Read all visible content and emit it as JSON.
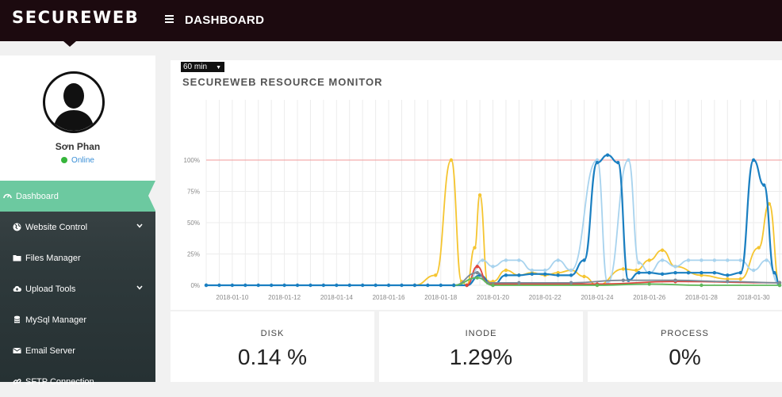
{
  "header": {
    "brand": "SECUREWEB",
    "title": "DASHBOARD"
  },
  "profile": {
    "name": "Sơn Phan",
    "status": "Online"
  },
  "sidebar": {
    "items": [
      {
        "label": "Dashboard",
        "icon": "gauge-icon",
        "active": true
      },
      {
        "label": "Website Control",
        "icon": "globe-icon",
        "chevron": true
      },
      {
        "label": "Files Manager",
        "icon": "folder-icon"
      },
      {
        "label": "Upload Tools",
        "icon": "cloud-upload-icon",
        "chevron": true
      },
      {
        "label": "MySql Manager",
        "icon": "database-icon"
      },
      {
        "label": "Email Server",
        "icon": "envelope-icon"
      },
      {
        "label": "SFTP Connection",
        "icon": "link-icon"
      }
    ]
  },
  "monitor": {
    "range": "60 min",
    "title": "SECUREWEB RESOURCE MONITOR"
  },
  "chart_data": {
    "type": "line",
    "title": "SECUREWEB RESOURCE MONITOR",
    "xlabel": "",
    "ylabel": "",
    "ylim": [
      0,
      100
    ],
    "yticks": [
      "0%",
      "25%",
      "50%",
      "75%",
      "100%"
    ],
    "x_ticks": [
      "2018-01-10",
      "2018-01-12",
      "2018-01-14",
      "2018-01-16",
      "2018-01-18",
      "2018-01-20",
      "2018-01-22",
      "2018-01-24",
      "2018-01-26",
      "2018-01-28",
      "2018-01-30"
    ],
    "x_range": [
      "2018-01-09",
      "2018-01-31"
    ],
    "threshold": 100,
    "grid": true,
    "colors": {
      "threshold": "#f29a9a",
      "grid": "#ececec"
    },
    "series": [
      {
        "color": "#f5c531",
        "points": [
          [
            "2018-01-17.0",
            0
          ],
          [
            "2018-01-17.8",
            8
          ],
          [
            "2018-01-18.4",
            100
          ],
          [
            "2018-01-18.8",
            3
          ],
          [
            "2018-01-19.0",
            0
          ],
          [
            "2018-01-19.3",
            30
          ],
          [
            "2018-01-19.5",
            72
          ],
          [
            "2018-01-19.8",
            3
          ],
          [
            "2018-01-20.0",
            3
          ],
          [
            "2018-01-20.5",
            12
          ],
          [
            "2018-01-21.0",
            8
          ],
          [
            "2018-01-21.5",
            10
          ],
          [
            "2018-01-22.0",
            8
          ],
          [
            "2018-01-22.5",
            10
          ],
          [
            "2018-01-23.0",
            12
          ],
          [
            "2018-01-23.5",
            7
          ],
          [
            "2018-01-24.0",
            0
          ],
          [
            "2018-01-25.0",
            13
          ],
          [
            "2018-01-25.5",
            12
          ],
          [
            "2018-01-26.0",
            20
          ],
          [
            "2018-01-26.5",
            28
          ],
          [
            "2018-01-27.0",
            15
          ],
          [
            "2018-01-28.0",
            8
          ],
          [
            "2018-01-29.0",
            5
          ],
          [
            "2018-01-29.5",
            5
          ],
          [
            "2018-01-30.2",
            30
          ],
          [
            "2018-01-30.6",
            65
          ],
          [
            "2018-01-31.0",
            0
          ]
        ]
      },
      {
        "color": "#a8d3ee",
        "points": [
          [
            "2018-01-17.0",
            0
          ],
          [
            "2018-01-19.0",
            0
          ],
          [
            "2018-01-19.6",
            20
          ],
          [
            "2018-01-20.0",
            15
          ],
          [
            "2018-01-20.5",
            20
          ],
          [
            "2018-01-21.0",
            20
          ],
          [
            "2018-01-21.5",
            12
          ],
          [
            "2018-01-22.0",
            12
          ],
          [
            "2018-01-22.5",
            20
          ],
          [
            "2018-01-23.0",
            12
          ],
          [
            "2018-01-24.0",
            100
          ],
          [
            "2018-01-24.4",
            2
          ],
          [
            "2018-01-25.2",
            100
          ],
          [
            "2018-01-25.6",
            18
          ],
          [
            "2018-01-26.0",
            10
          ],
          [
            "2018-01-26.5",
            20
          ],
          [
            "2018-01-27.0",
            15
          ],
          [
            "2018-01-27.5",
            20
          ],
          [
            "2018-01-28.0",
            20
          ],
          [
            "2018-01-28.5",
            20
          ],
          [
            "2018-01-29.0",
            20
          ],
          [
            "2018-01-29.5",
            20
          ],
          [
            "2018-01-30.0",
            12
          ],
          [
            "2018-01-30.5",
            20
          ],
          [
            "2018-01-31.0",
            0
          ]
        ]
      },
      {
        "color": "#1a7fc1",
        "points": [
          [
            "2018-01-09.0",
            0
          ],
          [
            "2018-01-19.0",
            0
          ],
          [
            "2018-01-19.5",
            8
          ],
          [
            "2018-01-20.0",
            0
          ],
          [
            "2018-01-20.5",
            8
          ],
          [
            "2018-01-21.0",
            8
          ],
          [
            "2018-01-21.5",
            9
          ],
          [
            "2018-01-22.0",
            9
          ],
          [
            "2018-01-22.5",
            8
          ],
          [
            "2018-01-23.0",
            8
          ],
          [
            "2018-01-23.5",
            20
          ],
          [
            "2018-01-24.0",
            98
          ],
          [
            "2018-01-24.4",
            104
          ],
          [
            "2018-01-24.8",
            98
          ],
          [
            "2018-01-25.2",
            4
          ],
          [
            "2018-01-25.6",
            10
          ],
          [
            "2018-01-26.0",
            10
          ],
          [
            "2018-01-26.5",
            9
          ],
          [
            "2018-01-27.0",
            10
          ],
          [
            "2018-01-27.5",
            10
          ],
          [
            "2018-01-28.0",
            10
          ],
          [
            "2018-01-28.5",
            10
          ],
          [
            "2018-01-29.0",
            8
          ],
          [
            "2018-01-29.5",
            10
          ],
          [
            "2018-01-30.0",
            100
          ],
          [
            "2018-01-30.4",
            80
          ],
          [
            "2018-01-30.8",
            10
          ],
          [
            "2018-01-31.0",
            0
          ]
        ]
      },
      {
        "color": "#e0453d",
        "points": [
          [
            "2018-01-19.0",
            0
          ],
          [
            "2018-01-19.4",
            15
          ],
          [
            "2018-01-19.8",
            2
          ],
          [
            "2018-01-20.0",
            1
          ],
          [
            "2018-01-23.0",
            1
          ],
          [
            "2018-01-24.0",
            1
          ],
          [
            "2018-01-27.0",
            3
          ],
          [
            "2018-01-31.0",
            2
          ]
        ]
      },
      {
        "color": "#7b8a98",
        "points": [
          [
            "2018-01-18.5",
            0
          ],
          [
            "2018-01-19.4",
            10
          ],
          [
            "2018-01-19.8",
            2
          ],
          [
            "2018-01-21.0",
            2
          ],
          [
            "2018-01-23.0",
            2
          ],
          [
            "2018-01-25.0",
            4
          ],
          [
            "2018-01-27.0",
            4
          ],
          [
            "2018-01-29.0",
            3
          ],
          [
            "2018-01-31.0",
            2
          ]
        ]
      },
      {
        "color": "#5fb85a",
        "points": [
          [
            "2018-01-18.5",
            0
          ],
          [
            "2018-01-19.4",
            6
          ],
          [
            "2018-01-20.0",
            0
          ],
          [
            "2018-01-24.0",
            0
          ],
          [
            "2018-01-26.0",
            1
          ],
          [
            "2018-01-28.0",
            0
          ],
          [
            "2018-01-31.0",
            0
          ]
        ]
      }
    ]
  },
  "stats": [
    {
      "label": "DISK",
      "value": "0.14 %"
    },
    {
      "label": "INODE",
      "value": "1.29%"
    },
    {
      "label": "PROCESS",
      "value": "0%"
    }
  ]
}
